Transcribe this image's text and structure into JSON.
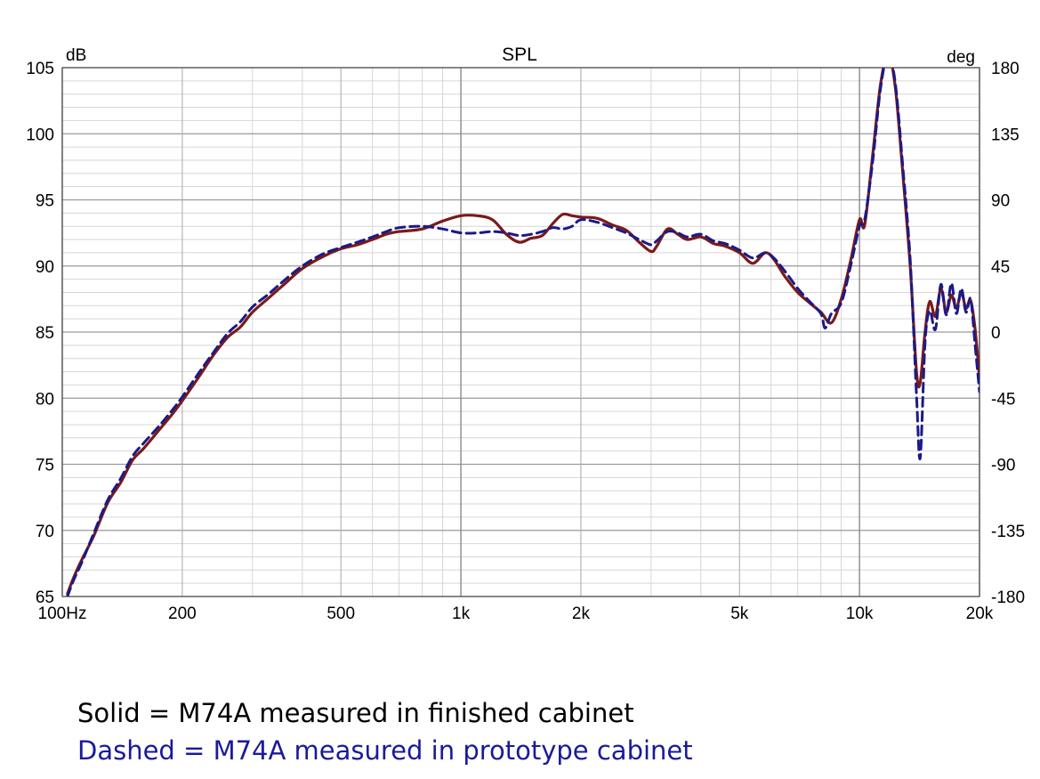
{
  "chart_data": {
    "type": "line",
    "title": "SPL",
    "y_left_unit": "dB",
    "y_right_unit": "deg",
    "x_scale": "log",
    "xlim": [
      100,
      20000
    ],
    "ylim": [
      65,
      105
    ],
    "y_right_lim": [
      -180,
      180
    ],
    "grid": true,
    "x_ticks": [
      {
        "value": 100,
        "label": "100Hz"
      },
      {
        "value": 200,
        "label": "200"
      },
      {
        "value": 500,
        "label": "500"
      },
      {
        "value": 1000,
        "label": "1k"
      },
      {
        "value": 2000,
        "label": "2k"
      },
      {
        "value": 5000,
        "label": "5k"
      },
      {
        "value": 10000,
        "label": "10k"
      },
      {
        "value": 20000,
        "label": "20k"
      }
    ],
    "y_ticks_left": [
      {
        "value": 105,
        "label": "105"
      },
      {
        "value": 100,
        "label": "100"
      },
      {
        "value": 95,
        "label": "95"
      },
      {
        "value": 90,
        "label": "90"
      },
      {
        "value": 85,
        "label": "85"
      },
      {
        "value": 80,
        "label": "80"
      },
      {
        "value": 75,
        "label": "75"
      },
      {
        "value": 70,
        "label": "70"
      },
      {
        "value": 65,
        "label": "65"
      }
    ],
    "y_ticks_right": [
      {
        "value": 180,
        "label": "180"
      },
      {
        "value": 135,
        "label": "135"
      },
      {
        "value": 90,
        "label": "90"
      },
      {
        "value": 45,
        "label": "45"
      },
      {
        "value": 0,
        "label": "0"
      },
      {
        "value": -45,
        "label": "-45"
      },
      {
        "value": -90,
        "label": "-90"
      },
      {
        "value": -135,
        "label": "-135"
      },
      {
        "value": -180,
        "label": "-180"
      }
    ],
    "series": [
      {
        "style": "solid",
        "color": "#7a1a1a",
        "points": [
          [
            103,
            65.2
          ],
          [
            107,
            66.5
          ],
          [
            112,
            67.8
          ],
          [
            120,
            69.6
          ],
          [
            130,
            72.1
          ],
          [
            140,
            73.6
          ],
          [
            150,
            75.3
          ],
          [
            160,
            76.2
          ],
          [
            175,
            77.6
          ],
          [
            190,
            78.9
          ],
          [
            200,
            79.8
          ],
          [
            220,
            81.6
          ],
          [
            240,
            83.3
          ],
          [
            260,
            84.6
          ],
          [
            280,
            85.4
          ],
          [
            300,
            86.5
          ],
          [
            330,
            87.6
          ],
          [
            360,
            88.6
          ],
          [
            400,
            89.8
          ],
          [
            450,
            90.7
          ],
          [
            500,
            91.3
          ],
          [
            550,
            91.6
          ],
          [
            600,
            92.0
          ],
          [
            650,
            92.4
          ],
          [
            700,
            92.6
          ],
          [
            800,
            92.8
          ],
          [
            900,
            93.4
          ],
          [
            1000,
            93.8
          ],
          [
            1100,
            93.8
          ],
          [
            1200,
            93.5
          ],
          [
            1300,
            92.4
          ],
          [
            1400,
            91.8
          ],
          [
            1500,
            92.1
          ],
          [
            1600,
            92.3
          ],
          [
            1700,
            93.2
          ],
          [
            1800,
            93.9
          ],
          [
            1900,
            93.8
          ],
          [
            2000,
            93.7
          ],
          [
            2200,
            93.6
          ],
          [
            2400,
            93.1
          ],
          [
            2600,
            92.7
          ],
          [
            2800,
            91.8
          ],
          [
            3000,
            91.1
          ],
          [
            3100,
            91.5
          ],
          [
            3300,
            92.8
          ],
          [
            3500,
            92.4
          ],
          [
            3700,
            92.0
          ],
          [
            4000,
            92.2
          ],
          [
            4300,
            91.7
          ],
          [
            4600,
            91.5
          ],
          [
            5000,
            91.0
          ],
          [
            5400,
            90.2
          ],
          [
            5800,
            91.0
          ],
          [
            6100,
            90.5
          ],
          [
            6500,
            89.2
          ],
          [
            7000,
            88.0
          ],
          [
            7500,
            87.2
          ],
          [
            8000,
            86.5
          ],
          [
            8500,
            85.7
          ],
          [
            9000,
            87.5
          ],
          [
            9500,
            90.4
          ],
          [
            10000,
            93.5
          ],
          [
            10300,
            93.1
          ],
          [
            10800,
            98.5
          ],
          [
            11300,
            103.8
          ],
          [
            11800,
            106
          ],
          [
            12300,
            103.5
          ],
          [
            12800,
            97.5
          ],
          [
            13400,
            90.0
          ],
          [
            13900,
            82.0
          ],
          [
            14200,
            81.2
          ],
          [
            14600,
            85.0
          ],
          [
            15000,
            87.3
          ],
          [
            15500,
            86.2
          ],
          [
            16000,
            88.3
          ],
          [
            16500,
            86.5
          ],
          [
            17000,
            87.8
          ],
          [
            17500,
            86.8
          ],
          [
            18000,
            88.0
          ],
          [
            18500,
            86.8
          ],
          [
            19000,
            87.4
          ],
          [
            19500,
            85.2
          ],
          [
            20000,
            81.5
          ]
        ]
      },
      {
        "style": "dashed",
        "color": "#1a1a8a",
        "points": [
          [
            103,
            65.0
          ],
          [
            107,
            66.3
          ],
          [
            112,
            67.6
          ],
          [
            120,
            69.8
          ],
          [
            130,
            72.3
          ],
          [
            140,
            73.9
          ],
          [
            150,
            75.6
          ],
          [
            160,
            76.6
          ],
          [
            175,
            77.9
          ],
          [
            190,
            79.2
          ],
          [
            200,
            80.1
          ],
          [
            220,
            81.9
          ],
          [
            240,
            83.5
          ],
          [
            260,
            84.9
          ],
          [
            280,
            85.8
          ],
          [
            300,
            86.9
          ],
          [
            330,
            87.9
          ],
          [
            360,
            88.9
          ],
          [
            400,
            90.0
          ],
          [
            450,
            90.9
          ],
          [
            500,
            91.4
          ],
          [
            550,
            91.8
          ],
          [
            600,
            92.2
          ],
          [
            650,
            92.6
          ],
          [
            700,
            92.9
          ],
          [
            800,
            93.0
          ],
          [
            900,
            92.8
          ],
          [
            1000,
            92.5
          ],
          [
            1100,
            92.5
          ],
          [
            1200,
            92.6
          ],
          [
            1300,
            92.5
          ],
          [
            1400,
            92.3
          ],
          [
            1500,
            92.4
          ],
          [
            1600,
            92.6
          ],
          [
            1700,
            92.9
          ],
          [
            1800,
            92.8
          ],
          [
            1900,
            93.0
          ],
          [
            2000,
            93.5
          ],
          [
            2200,
            93.3
          ],
          [
            2400,
            92.9
          ],
          [
            2600,
            92.5
          ],
          [
            2800,
            92.0
          ],
          [
            3000,
            91.6
          ],
          [
            3100,
            91.9
          ],
          [
            3300,
            92.6
          ],
          [
            3500,
            92.5
          ],
          [
            3700,
            92.2
          ],
          [
            4000,
            92.4
          ],
          [
            4300,
            91.9
          ],
          [
            4600,
            91.7
          ],
          [
            5000,
            91.2
          ],
          [
            5400,
            90.6
          ],
          [
            5800,
            91.0
          ],
          [
            6100,
            90.6
          ],
          [
            6500,
            89.6
          ],
          [
            7000,
            88.3
          ],
          [
            7500,
            87.3
          ],
          [
            8000,
            86.4
          ],
          [
            8200,
            85.3
          ],
          [
            8500,
            86.4
          ],
          [
            9000,
            87.2
          ],
          [
            9500,
            90.0
          ],
          [
            10000,
            93.0
          ],
          [
            10300,
            93.5
          ],
          [
            10800,
            98.0
          ],
          [
            11300,
            103.5
          ],
          [
            11800,
            106
          ],
          [
            12300,
            103.8
          ],
          [
            12800,
            98.0
          ],
          [
            13400,
            90.5
          ],
          [
            13900,
            80.2
          ],
          [
            14200,
            75.5
          ],
          [
            14600,
            84.2
          ],
          [
            15000,
            86.6
          ],
          [
            15500,
            85.2
          ],
          [
            16000,
            88.6
          ],
          [
            16500,
            86.3
          ],
          [
            17000,
            88.7
          ],
          [
            17500,
            86.4
          ],
          [
            18000,
            88.3
          ],
          [
            18500,
            86.5
          ],
          [
            19000,
            87.5
          ],
          [
            19500,
            84.0
          ],
          [
            20000,
            80.5
          ]
        ]
      }
    ]
  },
  "captions": {
    "solid": "Solid = M74A measured in finished cabinet",
    "dashed": "Dashed = M74A measured in prototype cabinet"
  }
}
